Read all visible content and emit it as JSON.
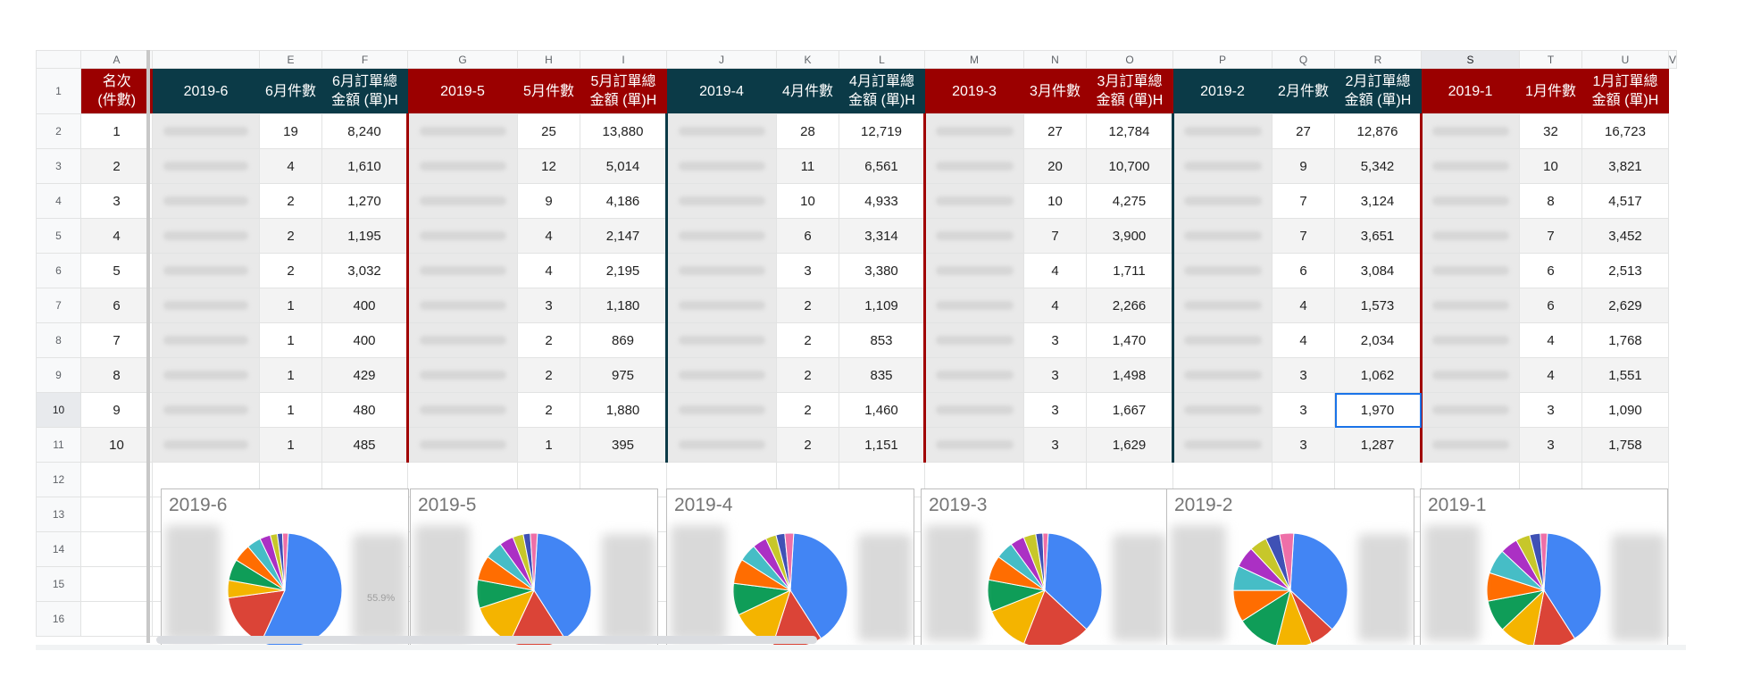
{
  "column_headers": [
    "A",
    "",
    "E",
    "F",
    "G",
    "H",
    "I",
    "J",
    "K",
    "L",
    "M",
    "N",
    "O",
    "P",
    "Q",
    "R",
    "S",
    "T",
    "U",
    "V"
  ],
  "row_numbers": [
    "1",
    "2",
    "3",
    "4",
    "5",
    "6",
    "7",
    "8",
    "9",
    "10",
    "11",
    "12",
    "13",
    "14",
    "15",
    "16"
  ],
  "header_row": {
    "rank": "名次\n(件數)",
    "groups": [
      {
        "month": "2019-6",
        "count_label": "6月件數",
        "amount_label": "6月訂單總\n金額 (單)H",
        "color": "dark"
      },
      {
        "month": "2019-5",
        "count_label": "5月件數",
        "amount_label": "5月訂單總\n金額 (單)H",
        "color": "red"
      },
      {
        "month": "2019-4",
        "count_label": "4月件數",
        "amount_label": "4月訂單總\n金額 (單)H",
        "color": "dark"
      },
      {
        "month": "2019-3",
        "count_label": "3月件數",
        "amount_label": "3月訂單總\n金額 (單)H",
        "color": "red"
      },
      {
        "month": "2019-2",
        "count_label": "2月件數",
        "amount_label": "2月訂單總\n金額 (單)H",
        "color": "dark"
      },
      {
        "month": "2019-1",
        "count_label": "1月件數",
        "amount_label": "1月訂單總\n金額 (單)H",
        "color": "red"
      }
    ]
  },
  "rows": [
    {
      "rank": "1",
      "v": [
        [
          "19",
          "8,240"
        ],
        [
          "25",
          "13,880"
        ],
        [
          "28",
          "12,719"
        ],
        [
          "27",
          "12,784"
        ],
        [
          "27",
          "12,876"
        ],
        [
          "32",
          "16,723"
        ]
      ]
    },
    {
      "rank": "2",
      "v": [
        [
          "4",
          "1,610"
        ],
        [
          "12",
          "5,014"
        ],
        [
          "11",
          "6,561"
        ],
        [
          "20",
          "10,700"
        ],
        [
          "9",
          "5,342"
        ],
        [
          "10",
          "3,821"
        ]
      ]
    },
    {
      "rank": "3",
      "v": [
        [
          "2",
          "1,270"
        ],
        [
          "9",
          "4,186"
        ],
        [
          "10",
          "4,933"
        ],
        [
          "10",
          "4,275"
        ],
        [
          "7",
          "3,124"
        ],
        [
          "8",
          "4,517"
        ]
      ]
    },
    {
      "rank": "4",
      "v": [
        [
          "2",
          "1,195"
        ],
        [
          "4",
          "2,147"
        ],
        [
          "6",
          "3,314"
        ],
        [
          "7",
          "3,900"
        ],
        [
          "7",
          "3,651"
        ],
        [
          "7",
          "3,452"
        ]
      ]
    },
    {
      "rank": "5",
      "v": [
        [
          "2",
          "3,032"
        ],
        [
          "4",
          "2,195"
        ],
        [
          "3",
          "3,380"
        ],
        [
          "4",
          "1,711"
        ],
        [
          "6",
          "3,084"
        ],
        [
          "6",
          "2,513"
        ]
      ]
    },
    {
      "rank": "6",
      "v": [
        [
          "1",
          "400"
        ],
        [
          "3",
          "1,180"
        ],
        [
          "2",
          "1,109"
        ],
        [
          "4",
          "2,266"
        ],
        [
          "4",
          "1,573"
        ],
        [
          "6",
          "2,629"
        ]
      ]
    },
    {
      "rank": "7",
      "v": [
        [
          "1",
          "400"
        ],
        [
          "2",
          "869"
        ],
        [
          "2",
          "853"
        ],
        [
          "3",
          "1,470"
        ],
        [
          "4",
          "2,034"
        ],
        [
          "4",
          "1,768"
        ]
      ]
    },
    {
      "rank": "8",
      "v": [
        [
          "1",
          "429"
        ],
        [
          "2",
          "975"
        ],
        [
          "2",
          "835"
        ],
        [
          "3",
          "1,498"
        ],
        [
          "3",
          "1,062"
        ],
        [
          "4",
          "1,551"
        ]
      ]
    },
    {
      "rank": "9",
      "v": [
        [
          "1",
          "480"
        ],
        [
          "2",
          "1,880"
        ],
        [
          "2",
          "1,460"
        ],
        [
          "3",
          "1,667"
        ],
        [
          "3",
          "1,970"
        ],
        [
          "3",
          "1,090"
        ]
      ]
    },
    {
      "rank": "10",
      "v": [
        [
          "1",
          "485"
        ],
        [
          "1",
          "395"
        ],
        [
          "2",
          "1,151"
        ],
        [
          "3",
          "1,629"
        ],
        [
          "3",
          "1,287"
        ],
        [
          "3",
          "1,758"
        ]
      ]
    }
  ],
  "selected_cell": {
    "column": "S",
    "row": "10"
  },
  "charts": [
    {
      "title": "2019-6",
      "percent_label": "55.9%"
    },
    {
      "title": "2019-5"
    },
    {
      "title": "2019-4"
    },
    {
      "title": "2019-3"
    },
    {
      "title": "2019-2"
    },
    {
      "title": "2019-1"
    }
  ],
  "pie_colors": [
    "#4285f4",
    "#db4437",
    "#f4b400",
    "#0f9d58",
    "#ff6d01",
    "#46bdc6",
    "#ab30c4",
    "#c7c72a",
    "#3f51b5",
    "#ee6fa8"
  ]
}
